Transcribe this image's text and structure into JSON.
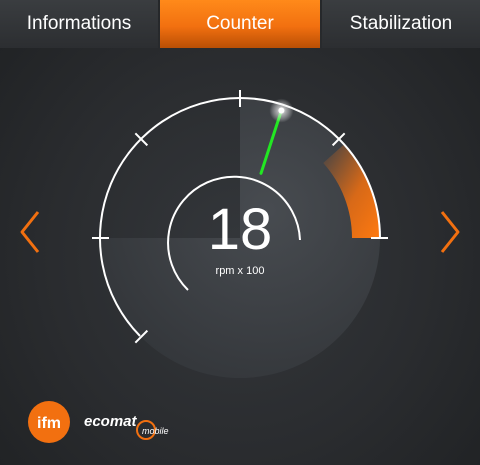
{
  "tabs": [
    {
      "label": "Informations",
      "active": false
    },
    {
      "label": "Counter",
      "active": true
    },
    {
      "label": "Stabilization",
      "active": false
    }
  ],
  "gauge": {
    "value": "18",
    "unit": "rpm x 100",
    "min": 0,
    "max": 30,
    "level": 18,
    "warning_start": 23,
    "colors": {
      "accent": "#f27010",
      "needle": "#22e822",
      "ring": "#ffffff"
    }
  },
  "navigation": {
    "prev_icon": "chevron-left-icon",
    "next_icon": "chevron-right-icon"
  },
  "logos": {
    "ifm": "ifm",
    "ecomat": "ecomat",
    "ecomat_sub": "mobile"
  }
}
